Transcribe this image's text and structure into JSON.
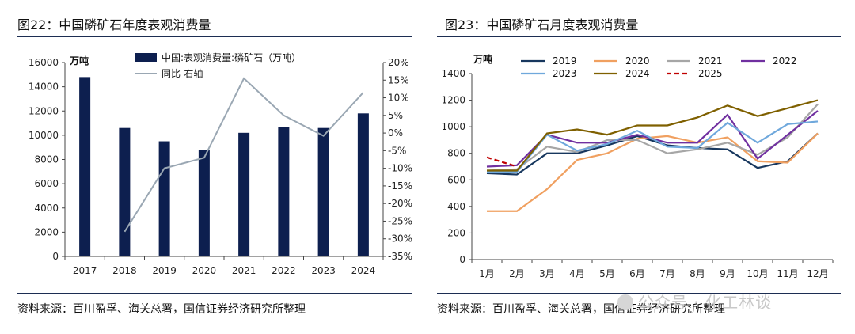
{
  "left": {
    "title": "图22：中国磷矿石年度表观消费量",
    "source": "资料来源：百川盈孚、海关总署，国信证券经济研究所整理"
  },
  "right": {
    "title": "图23：中国磷矿石月度表观消费量",
    "source": "资料来源：百川盈孚、海关总署，国信证券经济研究所整理"
  },
  "watermark": "公众号 · 化工林谈",
  "chart_data": [
    {
      "type": "bar",
      "unit_label": "万吨",
      "categories": [
        "2017",
        "2018",
        "2019",
        "2020",
        "2021",
        "2022",
        "2023",
        "2024"
      ],
      "series": [
        {
          "name": "中国:表观消费量:磷矿石（万吨）",
          "type": "bar",
          "axis": "left",
          "values": [
            14800,
            10600,
            9500,
            8800,
            10200,
            10700,
            10600,
            11800
          ],
          "color": "#0d1f4f"
        },
        {
          "name": "同比-右轴",
          "type": "line",
          "axis": "right",
          "values": [
            null,
            -28,
            -10,
            -7,
            15.5,
            5,
            -0.8,
            11.5
          ],
          "color": "#9aa7b3"
        }
      ],
      "ylim": [
        0,
        16000
      ],
      "y_ticks": [
        "0",
        "2000",
        "4000",
        "6000",
        "8000",
        "10000",
        "12000",
        "14000",
        "16000"
      ],
      "y2lim": [
        -35,
        20
      ],
      "y2_ticks": [
        "-35%",
        "-30%",
        "-25%",
        "-20%",
        "-15%",
        "-10%",
        "-5%",
        "0%",
        "5%",
        "10%",
        "15%",
        "20%"
      ],
      "legend_position": "top"
    },
    {
      "type": "line",
      "unit_label": "万吨",
      "categories": [
        "1月",
        "2月",
        "3月",
        "4月",
        "5月",
        "6月",
        "7月",
        "8月",
        "9月",
        "10月",
        "11月",
        "12月"
      ],
      "series": [
        {
          "name": "2019",
          "color": "#17375e",
          "dashed": false,
          "values": [
            650,
            640,
            800,
            800,
            860,
            930,
            860,
            840,
            830,
            690,
            740,
            950
          ]
        },
        {
          "name": "2020",
          "color": "#f0a060",
          "dashed": false,
          "values": [
            365,
            365,
            530,
            750,
            800,
            910,
            930,
            880,
            920,
            740,
            730,
            950
          ]
        },
        {
          "name": "2021",
          "color": "#a6a6a6",
          "dashed": false,
          "values": [
            670,
            680,
            850,
            810,
            900,
            900,
            800,
            830,
            880,
            790,
            920,
            1170
          ]
        },
        {
          "name": "2022",
          "color": "#7030a0",
          "dashed": false,
          "values": [
            700,
            710,
            940,
            880,
            880,
            940,
            880,
            880,
            1090,
            760,
            940,
            1120
          ]
        },
        {
          "name": "2023",
          "color": "#6fa8dc",
          "dashed": false,
          "values": [
            660,
            660,
            940,
            820,
            870,
            970,
            850,
            840,
            1030,
            880,
            1020,
            1040
          ]
        },
        {
          "name": "2024",
          "color": "#7f6000",
          "dashed": false,
          "values": [
            670,
            670,
            950,
            980,
            940,
            1010,
            1010,
            1070,
            1160,
            1080,
            1140,
            1200
          ]
        },
        {
          "name": "2025",
          "color": "#c00000",
          "dashed": true,
          "values": [
            770,
            700,
            null,
            null,
            null,
            null,
            null,
            null,
            null,
            null,
            null,
            null
          ]
        }
      ],
      "ylim": [
        0,
        1400
      ],
      "y_ticks": [
        "0",
        "200",
        "400",
        "600",
        "800",
        "1000",
        "1200",
        "1400"
      ],
      "legend_position": "top"
    }
  ]
}
